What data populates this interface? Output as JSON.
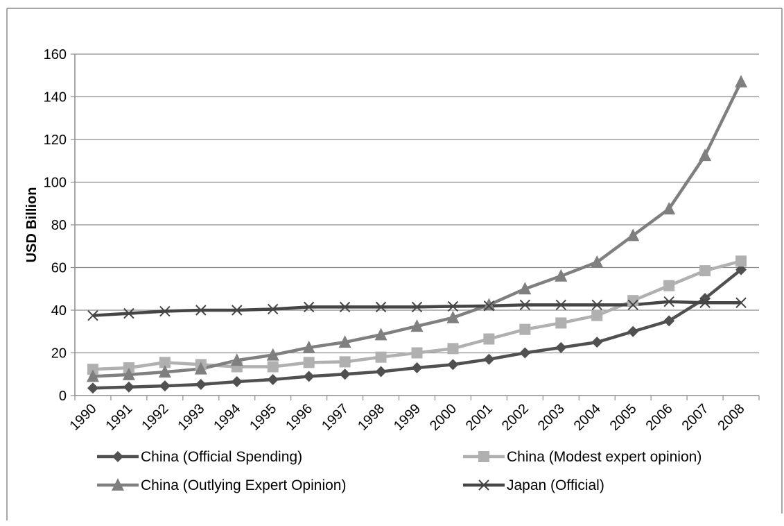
{
  "chart_data": {
    "type": "line",
    "title": "",
    "xlabel": "",
    "ylabel": "USD Billion",
    "ylim": [
      0,
      160
    ],
    "yticks": [
      0,
      20,
      40,
      60,
      80,
      100,
      120,
      140,
      160
    ],
    "grid": true,
    "legend_position": "bottom",
    "categories": [
      "1990",
      "1991",
      "1992",
      "1993",
      "1994",
      "1995",
      "1996",
      "1997",
      "1998",
      "1999",
      "2000",
      "2001",
      "2002",
      "2003",
      "2004",
      "2005",
      "2006",
      "2007",
      "2008"
    ],
    "series": [
      {
        "name": "China (Official Spending)",
        "color": "#505050",
        "marker": "diamond",
        "values": [
          3.5,
          4,
          4.5,
          5.2,
          6.5,
          7.5,
          9,
          10,
          11.2,
          13,
          14.5,
          17,
          20,
          22.5,
          25,
          30,
          35,
          45.5,
          59
        ]
      },
      {
        "name": "China (Modest expert opinion)",
        "color": "#b0b0b0",
        "marker": "square",
        "values": [
          12.3,
          13,
          15.5,
          14.5,
          13.5,
          13.5,
          15.5,
          15.8,
          18,
          20,
          22,
          26.5,
          31,
          34,
          37.5,
          44.5,
          51.5,
          58.5,
          63
        ]
      },
      {
        "name": "China (Outlying Expert Opinion)",
        "color": "#7f7f7f",
        "marker": "triangle",
        "values": [
          9,
          9.8,
          11,
          12.5,
          16.5,
          19,
          22.5,
          25,
          28.5,
          32.5,
          36.5,
          42.5,
          50,
          56,
          62.5,
          75,
          87.5,
          112.5,
          147
        ]
      },
      {
        "name": "Japan (Official)",
        "color": "#454545",
        "marker": "x",
        "values": [
          37.5,
          38.5,
          39.5,
          40,
          40,
          40.5,
          41.5,
          41.5,
          41.5,
          41.5,
          41.8,
          42,
          42.5,
          42.5,
          42.5,
          42.5,
          44,
          43.5,
          43.5
        ]
      }
    ]
  }
}
